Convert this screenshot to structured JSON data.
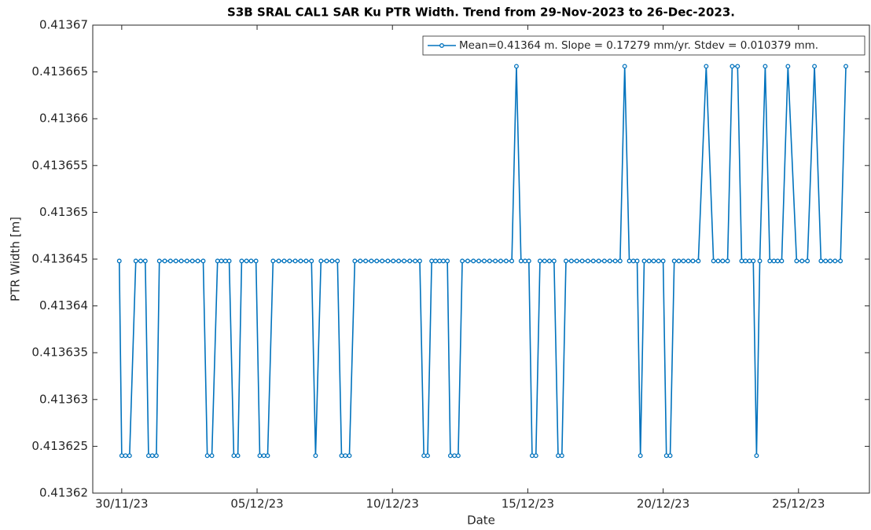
{
  "chart_data": {
    "type": "line",
    "title": "S3B SRAL CAL1 SAR Ku PTR Width. Trend from 29-Nov-2023 to 26-Dec-2023.",
    "xlabel": "Date",
    "ylabel": "PTR Width [m]",
    "xlim": [
      -1.07,
      27.62
    ],
    "xticks": [
      {
        "value": 0,
        "label": "30/11/23"
      },
      {
        "value": 5,
        "label": "05/12/23"
      },
      {
        "value": 10,
        "label": "10/12/23"
      },
      {
        "value": 15,
        "label": "15/12/23"
      },
      {
        "value": 20,
        "label": "20/12/23"
      },
      {
        "value": 25,
        "label": "25/12/23"
      }
    ],
    "ylim": [
      0.41362,
      0.41367
    ],
    "yticks": [
      0.41362,
      0.413625,
      0.41363,
      0.413635,
      0.41364,
      0.413645,
      0.41365,
      0.413655,
      0.41366,
      0.413665,
      0.41367
    ],
    "legend_position": "top-right",
    "x": [
      -0.09,
      0,
      0.14,
      0.29,
      0.52,
      0.7,
      0.87,
      0.99,
      1.13,
      1.28,
      1.39,
      1.59,
      1.8,
      2.0,
      2.2,
      2.41,
      2.61,
      2.81,
      3.01,
      3.16,
      3.33,
      3.54,
      3.68,
      3.83,
      3.97,
      4.14,
      4.29,
      4.43,
      4.61,
      4.78,
      4.96,
      5.1,
      5.25,
      5.39,
      5.59,
      5.8,
      6.0,
      6.2,
      6.41,
      6.61,
      6.81,
      7.01,
      7.16,
      7.36,
      7.57,
      7.77,
      7.97,
      8.12,
      8.26,
      8.41,
      8.61,
      8.81,
      9.01,
      9.22,
      9.42,
      9.62,
      9.83,
      10.03,
      10.23,
      10.43,
      10.64,
      10.84,
      11.01,
      11.16,
      11.3,
      11.45,
      11.59,
      11.74,
      11.88,
      12.03,
      12.14,
      12.29,
      12.43,
      12.58,
      12.78,
      12.99,
      13.19,
      13.39,
      13.59,
      13.8,
      14.0,
      14.2,
      14.41,
      14.58,
      14.75,
      14.9,
      15.04,
      15.16,
      15.3,
      15.45,
      15.62,
      15.8,
      15.97,
      16.12,
      16.26,
      16.41,
      16.61,
      16.81,
      17.01,
      17.22,
      17.42,
      17.62,
      17.83,
      18.03,
      18.23,
      18.41,
      18.58,
      18.75,
      18.9,
      19.04,
      19.16,
      19.3,
      19.48,
      19.65,
      19.83,
      20.0,
      20.12,
      20.26,
      20.41,
      20.58,
      20.75,
      20.93,
      21.1,
      21.3,
      21.59,
      21.86,
      22.03,
      22.2,
      22.38,
      22.55,
      22.75,
      22.9,
      23.04,
      23.19,
      23.33,
      23.45,
      23.57,
      23.77,
      23.94,
      24.09,
      24.23,
      24.38,
      24.61,
      24.93,
      25.13,
      25.33,
      25.59,
      25.83,
      26.0,
      26.17,
      26.35,
      26.55,
      26.75
    ],
    "series": [
      {
        "name": "Mean=0.41364 m. Slope = 0.17279 mm/yr. Stdev = 0.010379 mm.",
        "color": "#0072bd",
        "values": [
          0.4136448,
          0.413624,
          0.413624,
          0.413624,
          0.4136448,
          0.4136448,
          0.4136448,
          0.413624,
          0.413624,
          0.413624,
          0.4136448,
          0.4136448,
          0.4136448,
          0.4136448,
          0.4136448,
          0.4136448,
          0.4136448,
          0.4136448,
          0.4136448,
          0.413624,
          0.413624,
          0.4136448,
          0.4136448,
          0.4136448,
          0.4136448,
          0.413624,
          0.413624,
          0.4136448,
          0.4136448,
          0.4136448,
          0.4136448,
          0.413624,
          0.413624,
          0.413624,
          0.4136448,
          0.4136448,
          0.4136448,
          0.4136448,
          0.4136448,
          0.4136448,
          0.4136448,
          0.4136448,
          0.413624,
          0.4136448,
          0.4136448,
          0.4136448,
          0.4136448,
          0.413624,
          0.413624,
          0.413624,
          0.4136448,
          0.4136448,
          0.4136448,
          0.4136448,
          0.4136448,
          0.4136448,
          0.4136448,
          0.4136448,
          0.4136448,
          0.4136448,
          0.4136448,
          0.4136448,
          0.4136448,
          0.413624,
          0.413624,
          0.4136448,
          0.4136448,
          0.4136448,
          0.4136448,
          0.4136448,
          0.413624,
          0.413624,
          0.413624,
          0.4136448,
          0.4136448,
          0.4136448,
          0.4136448,
          0.4136448,
          0.4136448,
          0.4136448,
          0.4136448,
          0.4136448,
          0.4136448,
          0.4136656,
          0.4136448,
          0.4136448,
          0.4136448,
          0.413624,
          0.413624,
          0.4136448,
          0.4136448,
          0.4136448,
          0.4136448,
          0.413624,
          0.413624,
          0.4136448,
          0.4136448,
          0.4136448,
          0.4136448,
          0.4136448,
          0.4136448,
          0.4136448,
          0.4136448,
          0.4136448,
          0.4136448,
          0.4136448,
          0.4136656,
          0.4136448,
          0.4136448,
          0.4136448,
          0.413624,
          0.4136448,
          0.4136448,
          0.4136448,
          0.4136448,
          0.4136448,
          0.413624,
          0.413624,
          0.4136448,
          0.4136448,
          0.4136448,
          0.4136448,
          0.4136448,
          0.4136448,
          0.4136656,
          0.4136448,
          0.4136448,
          0.4136448,
          0.4136448,
          0.4136656,
          0.4136656,
          0.4136448,
          0.4136448,
          0.4136448,
          0.4136448,
          0.413624,
          0.4136448,
          0.4136656,
          0.4136448,
          0.4136448,
          0.4136448,
          0.4136448,
          0.4136656,
          0.4136448,
          0.4136448,
          0.4136448,
          0.4136656,
          0.4136448,
          0.4136448,
          0.4136448,
          0.4136448,
          0.4136448,
          0.4136656
        ]
      }
    ]
  }
}
